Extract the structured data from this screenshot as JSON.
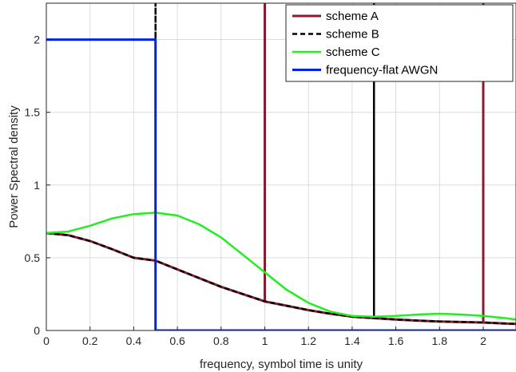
{
  "chart_data": {
    "type": "line",
    "title": "",
    "xlabel": "frequency, symbol time is unity",
    "ylabel": "Power Spectral density",
    "xlim": [
      0,
      2.15
    ],
    "ylim": [
      0,
      2.25
    ],
    "xticks": [
      0,
      0.2,
      0.4,
      0.6,
      0.8,
      1,
      1.2,
      1.4,
      1.6,
      1.8,
      2
    ],
    "xtick_labels": [
      "0",
      "0.2",
      "0.4",
      "0.6",
      "0.8",
      "1",
      "1.2",
      "1.4",
      "1.6",
      "1.8",
      "2"
    ],
    "yticks": [
      0,
      0.5,
      1,
      1.5,
      2
    ],
    "ytick_labels": [
      "0",
      "0.5",
      "1",
      "1.5",
      "2"
    ],
    "grid": true,
    "legend_position": "top-right",
    "series": [
      {
        "name": "scheme A",
        "color": "#8b1a2b",
        "style": "solid",
        "x": [
          0,
          0.1,
          0.2,
          0.3,
          0.4,
          0.5,
          0.6,
          0.7,
          0.8,
          0.9,
          1,
          1,
          1,
          1.1,
          1.2,
          1.3,
          1.4,
          1.5,
          1.6,
          1.7,
          1.8,
          1.9,
          2,
          2,
          2,
          2.1,
          2.15
        ],
        "y": [
          0.67,
          0.655,
          0.615,
          0.56,
          0.5,
          0.48,
          0.42,
          0.36,
          0.3,
          0.25,
          0.2,
          2.25,
          0.2,
          0.17,
          0.14,
          0.115,
          0.095,
          0.085,
          0.075,
          0.068,
          0.062,
          0.058,
          0.055,
          2.25,
          0.055,
          0.048,
          0.045
        ]
      },
      {
        "name": "scheme B",
        "color": "#000000",
        "style": "dashed",
        "x": [
          0,
          0.1,
          0.2,
          0.3,
          0.4,
          0.5,
          0.5,
          0.5,
          0.6,
          0.7,
          0.8,
          0.9,
          1,
          1.1,
          1.2,
          1.3,
          1.4,
          1.5,
          1.5,
          1.5,
          1.6,
          1.7,
          1.8,
          1.9,
          2,
          2.1,
          2.15
        ],
        "y": [
          0.67,
          0.655,
          0.615,
          0.56,
          0.5,
          0.48,
          2.25,
          0.48,
          0.42,
          0.36,
          0.3,
          0.25,
          0.2,
          0.17,
          0.14,
          0.115,
          0.095,
          0.085,
          2.25,
          0.085,
          0.075,
          0.068,
          0.062,
          0.058,
          0.055,
          0.048,
          0.045
        ]
      },
      {
        "name": "scheme C",
        "color": "#22ee22",
        "style": "solid",
        "x": [
          0,
          0.1,
          0.2,
          0.3,
          0.4,
          0.5,
          0.6,
          0.7,
          0.8,
          0.9,
          1,
          1.1,
          1.2,
          1.3,
          1.4,
          1.5,
          1.6,
          1.7,
          1.8,
          1.9,
          2,
          2.1,
          2.15
        ],
        "y": [
          0.67,
          0.68,
          0.72,
          0.77,
          0.8,
          0.81,
          0.79,
          0.73,
          0.64,
          0.52,
          0.4,
          0.28,
          0.19,
          0.13,
          0.1,
          0.095,
          0.1,
          0.11,
          0.115,
          0.11,
          0.1,
          0.085,
          0.075
        ]
      },
      {
        "name": "frequency-flat AWGN",
        "color": "#0022ee",
        "style": "solid",
        "x": [
          0,
          0.5,
          0.5,
          2.15
        ],
        "y": [
          2,
          2,
          0,
          0
        ]
      }
    ]
  }
}
